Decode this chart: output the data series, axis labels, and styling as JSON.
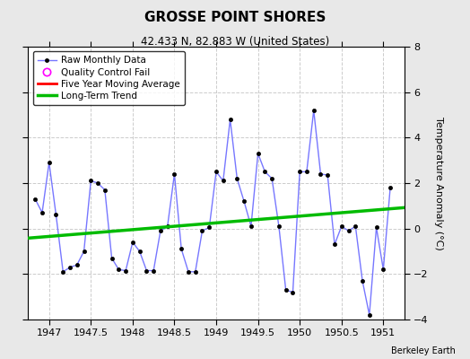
{
  "title": "GROSSE POINT SHORES",
  "subtitle": "42.433 N, 82.883 W (United States)",
  "ylabel": "Temperature Anomaly (°C)",
  "credit": "Berkeley Earth",
  "xlim": [
    1946.75,
    1951.25
  ],
  "ylim": [
    -4,
    8
  ],
  "yticks": [
    -4,
    -2,
    0,
    2,
    4,
    6,
    8
  ],
  "xticks": [
    1947,
    1947.5,
    1948,
    1948.5,
    1949,
    1949.5,
    1950,
    1950.5,
    1951
  ],
  "bg_color": "#e8e8e8",
  "plot_bg_color": "#ffffff",
  "raw_x": [
    1946.833,
    1946.917,
    1947.0,
    1947.083,
    1947.167,
    1947.25,
    1947.333,
    1947.417,
    1947.5,
    1947.583,
    1947.667,
    1947.75,
    1947.833,
    1947.917,
    1948.0,
    1948.083,
    1948.167,
    1948.25,
    1948.333,
    1948.417,
    1948.5,
    1948.583,
    1948.667,
    1948.75,
    1948.833,
    1948.917,
    1949.0,
    1949.083,
    1949.167,
    1949.25,
    1949.333,
    1949.417,
    1949.5,
    1949.583,
    1949.667,
    1949.75,
    1949.833,
    1949.917,
    1950.0,
    1950.083,
    1950.167,
    1950.25,
    1950.333,
    1950.417,
    1950.5,
    1950.583,
    1950.667,
    1950.75,
    1950.833,
    1950.917,
    1951.0,
    1951.083
  ],
  "raw_y": [
    1.3,
    0.7,
    2.9,
    0.6,
    -1.9,
    -1.7,
    -1.6,
    -1.0,
    2.1,
    2.0,
    1.7,
    -1.3,
    -1.8,
    -1.85,
    -0.6,
    -1.0,
    -1.85,
    -1.85,
    -0.1,
    0.1,
    2.4,
    -0.9,
    -1.9,
    -1.9,
    -0.1,
    0.05,
    2.5,
    2.1,
    4.8,
    2.2,
    1.2,
    0.1,
    3.3,
    2.5,
    2.2,
    0.1,
    -2.7,
    -2.8,
    2.5,
    2.5,
    5.2,
    2.4,
    2.35,
    -0.7,
    0.1,
    -0.1,
    0.1,
    -2.3,
    -3.8,
    0.05,
    -1.8,
    1.8
  ],
  "trend_x": [
    1946.75,
    1951.25
  ],
  "trend_y": [
    -0.42,
    0.92
  ],
  "raw_line_color": "#7777ff",
  "raw_marker_color": "#000000",
  "trend_color": "#00bb00",
  "ma_color": "#ff0000",
  "raw_linewidth": 1.0,
  "trend_linewidth": 2.5,
  "marker_size": 3,
  "grid_color": "#cccccc",
  "grid_linestyle": "--",
  "grid_alpha": 1.0
}
